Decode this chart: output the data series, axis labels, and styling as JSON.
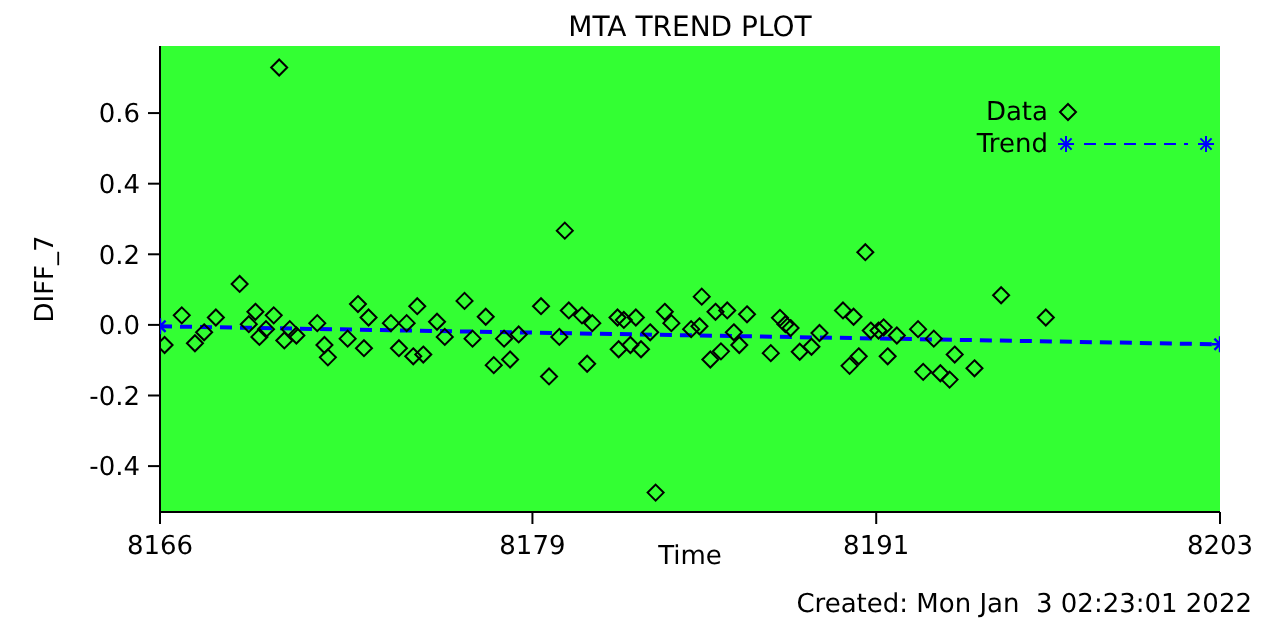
{
  "chart_data": {
    "type": "scatter",
    "title": "MTA TREND PLOT",
    "xlabel": "Time",
    "ylabel": "DIFF_7",
    "annotations": [
      "Created: Mon Jan  3 02:23:01 2022"
    ],
    "xlim": [
      8166,
      8203
    ],
    "xticks": [
      8166,
      8179,
      8191,
      8203
    ],
    "ylim": [
      -0.53,
      0.79
    ],
    "yticks": [
      -0.4,
      -0.2,
      {
        "value": 0,
        "label": "0.0"
      },
      0.2,
      0.4,
      0.6
    ],
    "legend": "top right",
    "series": [
      {
        "name": "Data",
        "marker": "diamond",
        "color": "#000000",
        "x": [
          8166.16,
          8166.76,
          8167.22,
          8167.54,
          8167.95,
          8168.78,
          8169.1,
          8169.33,
          8169.47,
          8169.7,
          8169.97,
          8170.16,
          8170.34,
          8170.53,
          8170.76,
          8171.49,
          8171.74,
          8171.86,
          8172.55,
          8172.91,
          8173.12,
          8173.28,
          8174.06,
          8174.34,
          8174.61,
          8174.84,
          8174.98,
          8175.19,
          8175.67,
          8175.94,
          8176.63,
          8176.91,
          8177.37,
          8177.65,
          8178.01,
          8178.22,
          8178.52,
          8179.3,
          8179.58,
          8179.94,
          8180.13,
          8180.27,
          8180.73,
          8180.91,
          8181.09,
          8181.97,
          8182.01,
          8182.19,
          8182.42,
          8182.61,
          8182.79,
          8183.11,
          8183.3,
          8183.62,
          8183.85,
          8184.54,
          8184.83,
          8184.91,
          8185.21,
          8185.39,
          8185.58,
          8185.8,
          8186.03,
          8186.22,
          8186.49,
          8187.32,
          8187.64,
          8187.83,
          8188.01,
          8188.33,
          8188.74,
          8189.02,
          8189.84,
          8190.07,
          8190.21,
          8190.39,
          8190.62,
          8190.81,
          8191.08,
          8191.26,
          8191.4,
          8191.72,
          8192.46,
          8192.64,
          8193.01,
          8193.24,
          8193.56,
          8193.74,
          8194.43,
          8195.36,
          8196.92
        ],
        "values": [
          -0.057,
          0.027,
          -0.052,
          -0.021,
          0.021,
          0.116,
          0.002,
          0.037,
          -0.034,
          -0.012,
          0.027,
          0.729,
          -0.044,
          -0.012,
          -0.03,
          0.005,
          -0.057,
          -0.092,
          -0.039,
          0.059,
          -0.066,
          0.021,
          0.005,
          -0.066,
          0.005,
          -0.089,
          0.053,
          -0.084,
          0.009,
          -0.034,
          0.068,
          -0.039,
          0.023,
          -0.114,
          -0.039,
          -0.098,
          -0.027,
          0.053,
          -0.146,
          -0.034,
          0.267,
          0.041,
          0.027,
          -0.11,
          0.005,
          0.021,
          -0.069,
          0.014,
          -0.057,
          0.021,
          -0.069,
          -0.021,
          -0.475,
          0.037,
          0.005,
          -0.012,
          -0.004,
          0.08,
          -0.098,
          0.037,
          -0.075,
          0.041,
          -0.021,
          -0.057,
          0.03,
          -0.08,
          0.02,
          0.002,
          -0.009,
          -0.076,
          -0.062,
          -0.023,
          0.041,
          -0.116,
          0.023,
          -0.089,
          0.206,
          -0.016,
          -0.016,
          -0.007,
          -0.089,
          -0.03,
          -0.012,
          -0.133,
          -0.039,
          -0.137,
          -0.155,
          -0.084,
          -0.123,
          0.084,
          0.021
        ]
      },
      {
        "name": "Trend",
        "type": "line",
        "line_style": "dashed",
        "marker": "cross",
        "color": "#0000ff",
        "x": [
          8166,
          8203
        ],
        "values": [
          -0.004,
          -0.055
        ]
      }
    ]
  }
}
